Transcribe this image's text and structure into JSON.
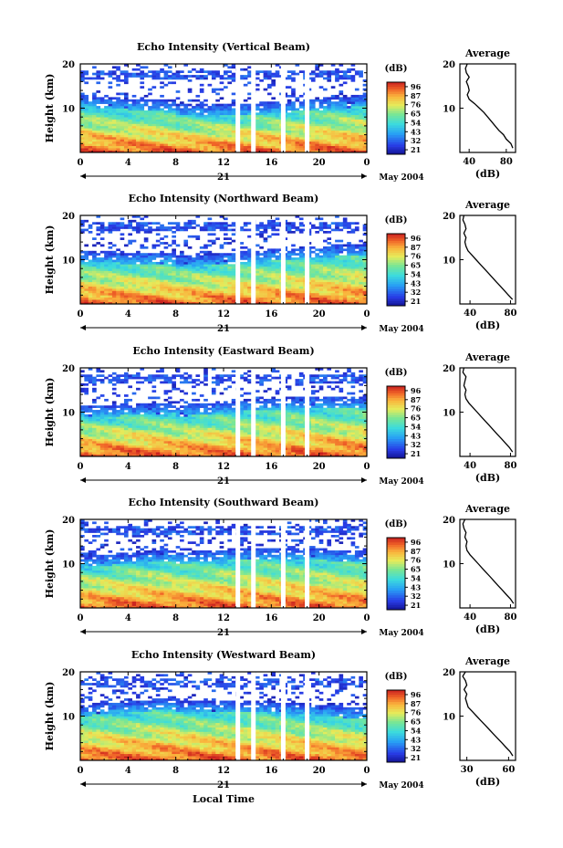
{
  "chart_data": {
    "type": "heatmap",
    "date_label": "May 2004",
    "day_label": "21",
    "xlabel_bottom": "Local Time",
    "x_ticks": [
      "0",
      "4",
      "8",
      "12",
      "16",
      "20",
      "0"
    ],
    "x_range_hours": [
      0,
      24
    ],
    "y_range_km": [
      0,
      20
    ],
    "y_ticks": [
      "10",
      "20"
    ],
    "ylabel": "Height (km)",
    "colorbar_unit": "(dB)",
    "data_gaps_hours": [
      13.2,
      14.5,
      17.0,
      19.0
    ],
    "panels": [
      {
        "title": "Echo Intensity (Vertical Beam)",
        "colorbar_ticks": [
          "96",
          "87",
          "76",
          "65",
          "54",
          "43",
          "32",
          "21"
        ],
        "average_title": "Average",
        "average_xlabel": "(dB)",
        "average_x_ticks": [
          "40",
          "80"
        ],
        "average_xlim": [
          30,
          90
        ],
        "average_profile": {
          "height_km": [
            1,
            2,
            3,
            4,
            5,
            6,
            7,
            8,
            9,
            10,
            11,
            12,
            13,
            14,
            15,
            16,
            17,
            18,
            19,
            20
          ],
          "db": [
            87,
            85,
            80,
            77,
            72,
            68,
            64,
            60,
            56,
            51,
            46,
            40,
            38,
            40,
            39,
            37,
            40,
            37,
            36,
            38
          ]
        }
      },
      {
        "title": "Echo Intensity (Northward Beam)",
        "colorbar_ticks": [
          "96",
          "87",
          "76",
          "65",
          "54",
          "43",
          "32",
          "21"
        ],
        "average_title": "Average",
        "average_xlabel": "(dB)",
        "average_x_ticks": [
          "40",
          "80"
        ],
        "average_xlim": [
          30,
          85
        ],
        "average_profile": {
          "height_km": [
            1,
            2,
            3,
            4,
            5,
            6,
            7,
            8,
            9,
            10,
            11,
            12,
            13,
            14,
            15,
            16,
            17,
            18,
            19,
            20
          ],
          "db": [
            82,
            78,
            74,
            70,
            66,
            62,
            58,
            54,
            50,
            46,
            42,
            38,
            36,
            35,
            36,
            34,
            36,
            35,
            33,
            34
          ]
        }
      },
      {
        "title": "Echo Intensity (Eastward Beam)",
        "colorbar_ticks": [
          "96",
          "87",
          "76",
          "65",
          "54",
          "43",
          "32",
          "21"
        ],
        "average_title": "Average",
        "average_xlabel": "(dB)",
        "average_x_ticks": [
          "40",
          "80"
        ],
        "average_xlim": [
          30,
          85
        ],
        "average_profile": {
          "height_km": [
            1,
            2,
            3,
            4,
            5,
            6,
            7,
            8,
            9,
            10,
            11,
            12,
            13,
            14,
            15,
            16,
            17,
            18,
            19,
            20
          ],
          "db": [
            82,
            79,
            75,
            71,
            67,
            63,
            59,
            55,
            51,
            47,
            43,
            39,
            36,
            35,
            36,
            34,
            35,
            36,
            33,
            34
          ]
        }
      },
      {
        "title": "Echo Intensity (Southward Beam)",
        "colorbar_ticks": [
          "96",
          "87",
          "76",
          "65",
          "54",
          "43",
          "32",
          "21"
        ],
        "average_title": "Average",
        "average_xlabel": "(dB)",
        "average_x_ticks": [
          "40",
          "80"
        ],
        "average_xlim": [
          30,
          85
        ],
        "average_profile": {
          "height_km": [
            1,
            2,
            3,
            4,
            5,
            6,
            7,
            8,
            9,
            10,
            11,
            12,
            13,
            14,
            15,
            16,
            17,
            18,
            19,
            20
          ],
          "db": [
            83,
            80,
            76,
            72,
            68,
            64,
            60,
            56,
            52,
            48,
            44,
            40,
            37,
            36,
            37,
            35,
            36,
            34,
            33,
            35
          ]
        }
      },
      {
        "title": "Echo Intensity (Westward Beam)",
        "colorbar_ticks": [
          "96",
          "87",
          "76",
          "65",
          "54",
          "43",
          "32",
          "21"
        ],
        "average_title": "Average",
        "average_xlabel": "(dB)",
        "average_x_ticks": [
          "30",
          "60"
        ],
        "average_xlim": [
          25,
          65
        ],
        "average_profile": {
          "height_km": [
            1,
            2,
            3,
            4,
            5,
            6,
            7,
            8,
            9,
            10,
            11,
            12,
            13,
            14,
            15,
            16,
            17,
            18,
            19,
            20
          ],
          "db": [
            63,
            61,
            58,
            55,
            52,
            49,
            46,
            43,
            40,
            37,
            34,
            31,
            30,
            29,
            30,
            28,
            30,
            29,
            27,
            29
          ]
        }
      }
    ]
  }
}
